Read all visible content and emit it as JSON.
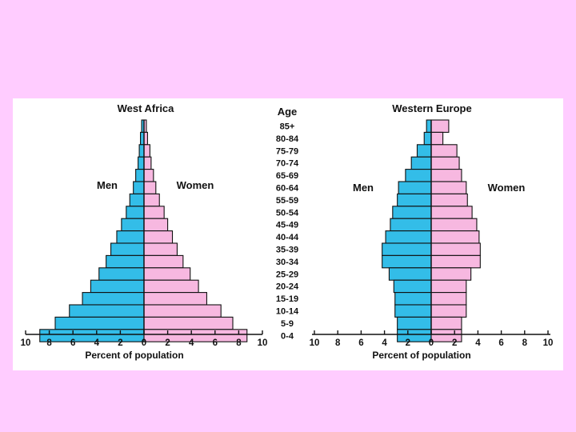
{
  "colors": {
    "slide_background": "#ffccff",
    "figure_background": "#ffffff",
    "men": "#33bde8",
    "women": "#f7b8e0",
    "outline": "#111111"
  },
  "age_header": "Age",
  "chart_data": [
    {
      "type": "bar",
      "orientation": "horizontal",
      "title": "West Africa",
      "xlabel": "Percent of population",
      "left_label": "Men",
      "right_label": "Women",
      "xlim": [
        -10,
        10
      ],
      "xticks": [
        "10",
        "8",
        "6",
        "4",
        "2",
        "0",
        "2",
        "4",
        "6",
        "8",
        "10"
      ],
      "categories": [
        "85+",
        "80-84",
        "75-79",
        "70-74",
        "65-69",
        "60-64",
        "55-59",
        "50-54",
        "45-49",
        "40-44",
        "35-39",
        "30-34",
        "25-29",
        "20-24",
        "15-19",
        "10-14",
        "5-9",
        "0-4"
      ],
      "series": [
        {
          "name": "Men",
          "values": [
            0.2,
            0.3,
            0.4,
            0.5,
            0.7,
            0.9,
            1.2,
            1.5,
            1.9,
            2.3,
            2.8,
            3.2,
            3.8,
            4.5,
            5.2,
            6.3,
            7.5,
            8.8
          ]
        },
        {
          "name": "Women",
          "values": [
            0.2,
            0.3,
            0.5,
            0.6,
            0.8,
            1.0,
            1.3,
            1.7,
            2.0,
            2.4,
            2.8,
            3.3,
            3.9,
            4.6,
            5.3,
            6.5,
            7.5,
            8.7
          ]
        }
      ],
      "grid": false
    },
    {
      "type": "bar",
      "orientation": "horizontal",
      "title": "Western Europe",
      "xlabel": "Percent of population",
      "left_label": "Men",
      "right_label": "Women",
      "xlim": [
        -10,
        10
      ],
      "xticks": [
        "10",
        "8",
        "6",
        "4",
        "2",
        "0",
        "2",
        "4",
        "6",
        "8",
        "10"
      ],
      "categories": [
        "85+",
        "80-84",
        "75-79",
        "70-74",
        "65-69",
        "60-64",
        "55-59",
        "50-54",
        "45-49",
        "40-44",
        "35-39",
        "30-34",
        "25-29",
        "20-24",
        "15-19",
        "10-14",
        "5-9",
        "0-4"
      ],
      "series": [
        {
          "name": "Men",
          "values": [
            0.4,
            0.6,
            1.2,
            1.7,
            2.2,
            2.8,
            2.9,
            3.3,
            3.5,
            3.9,
            4.2,
            4.2,
            3.6,
            3.2,
            3.1,
            3.1,
            2.9,
            2.9
          ]
        },
        {
          "name": "Women",
          "values": [
            1.5,
            1.0,
            2.2,
            2.4,
            2.6,
            3.0,
            3.1,
            3.5,
            3.9,
            4.1,
            4.2,
            4.2,
            3.4,
            3.0,
            3.0,
            3.0,
            2.6,
            2.6
          ]
        }
      ],
      "grid": false
    }
  ]
}
